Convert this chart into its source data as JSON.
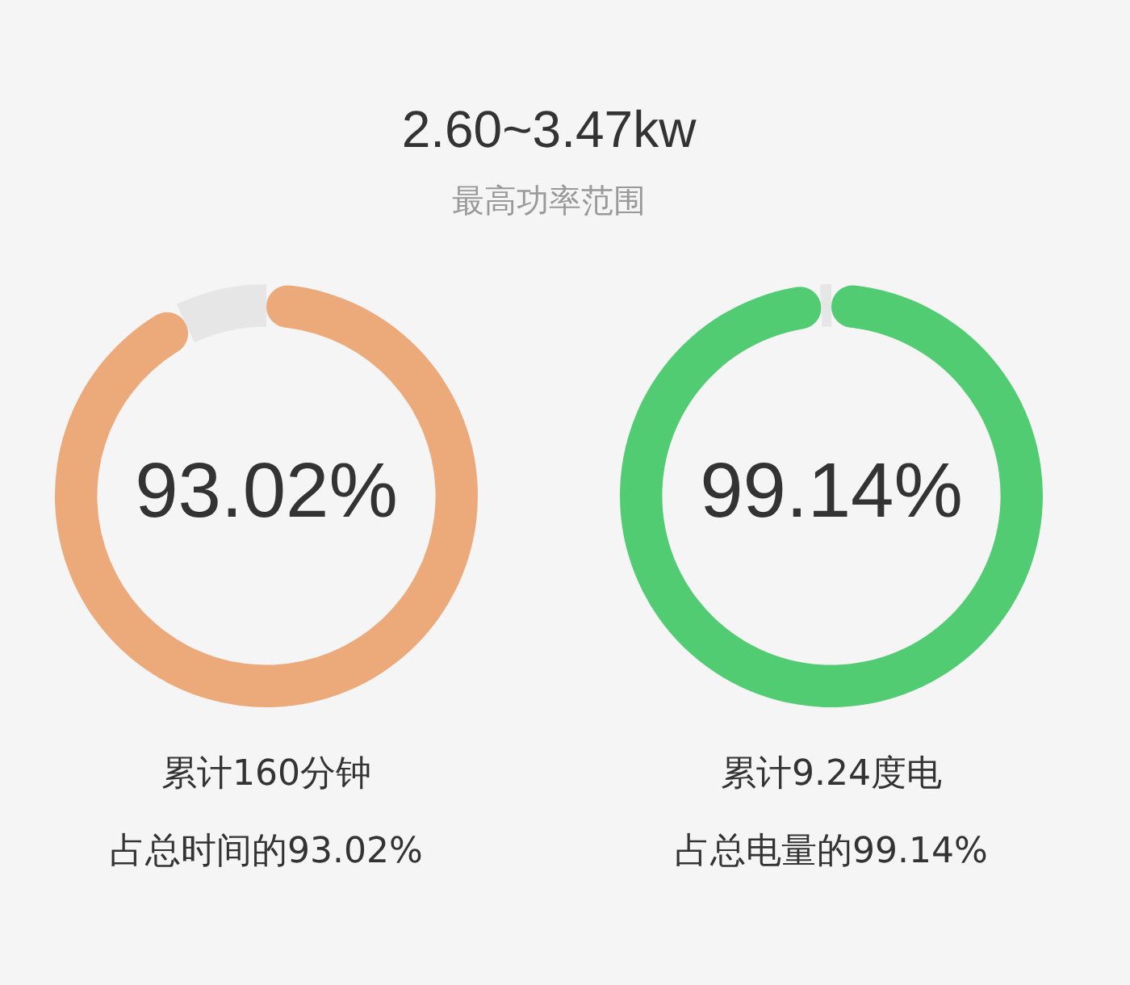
{
  "chart_data": [
    {
      "type": "other",
      "title": "2.60~3.47kw",
      "subtitle": "最高功率范围"
    },
    {
      "type": "donut",
      "categories": [
        null,
        null
      ],
      "values": [
        93.02,
        6.98
      ],
      "colors": [
        "#eca97a",
        "#e6e6e6"
      ],
      "value_labels": [
        "93.02%",
        null
      ],
      "annotations": [
        "累计160分钟",
        "占总时间的93.02%"
      ]
    },
    {
      "type": "donut",
      "categories": [
        null,
        null
      ],
      "values": [
        99.14,
        0.86
      ],
      "colors": [
        "#52cc72",
        "#e6e6e6"
      ],
      "value_labels": [
        "99.14%",
        null
      ],
      "annotations": [
        "累计9.24度电",
        "占总电量的99.14%"
      ]
    }
  ]
}
